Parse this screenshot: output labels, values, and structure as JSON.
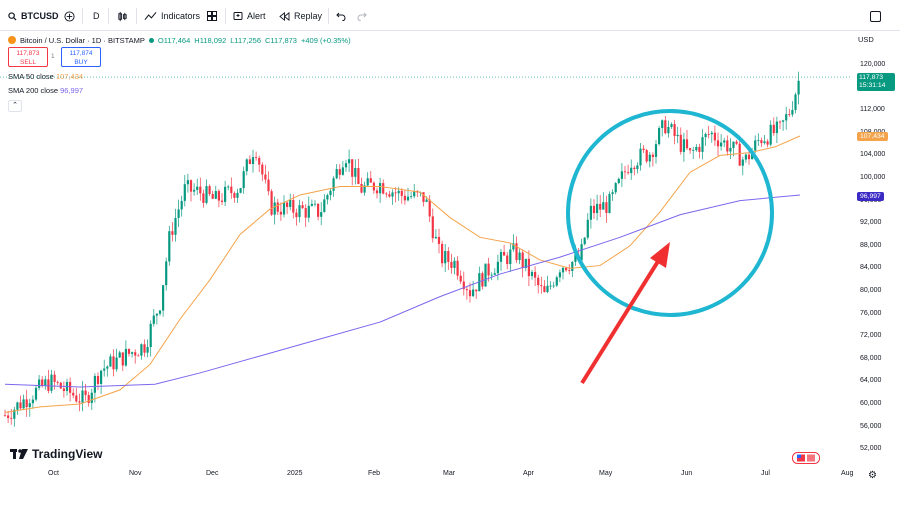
{
  "toolbar": {
    "symbol": "BTCUSD",
    "interval": "D",
    "indicators_label": "Indicators",
    "alert_label": "Alert",
    "replay_label": "Replay"
  },
  "legend": {
    "title": "Bitcoin / U.S. Dollar · 1D · BITSTAMP",
    "o": "O117,464",
    "h": "H118,092",
    "l": "L117,256",
    "c": "C117,873",
    "change": "+409 (+0.35%)",
    "sell_price": "117,873",
    "sell_label": "SELL",
    "spread": "1",
    "buy_price": "117,874",
    "buy_label": "BUY",
    "sma50_label": "SMA 50 close",
    "sma50_value": "107,434",
    "sma200_label": "SMA 200 close",
    "sma200_value": "96,997"
  },
  "price_scale": {
    "currency": "USD",
    "ticks": [
      "120,000",
      "116,000",
      "112,000",
      "108,000",
      "104,000",
      "100,000",
      "96,000",
      "92,000",
      "88,000",
      "84,000",
      "80,000",
      "76,000",
      "72,000",
      "68,000",
      "64,000",
      "60,000",
      "56,000",
      "52,000"
    ],
    "last_price": "117,873",
    "countdown": "15:31:14",
    "sma50_tag": "107,434",
    "sma200_tag": "96,997"
  },
  "time_scale": {
    "labels": [
      "Oct",
      "Nov",
      "Dec",
      "2025",
      "Feb",
      "Mar",
      "Apr",
      "May",
      "Jun",
      "Jul",
      "Aug"
    ]
  },
  "brand": "TradingView",
  "colors": {
    "up": "#089981",
    "down": "#f23645",
    "sma50": "#f5a34a",
    "sma200": "#7b68ee",
    "annotation_circle": "#1fb6d2",
    "annotation_arrow": "#f03030"
  }
}
